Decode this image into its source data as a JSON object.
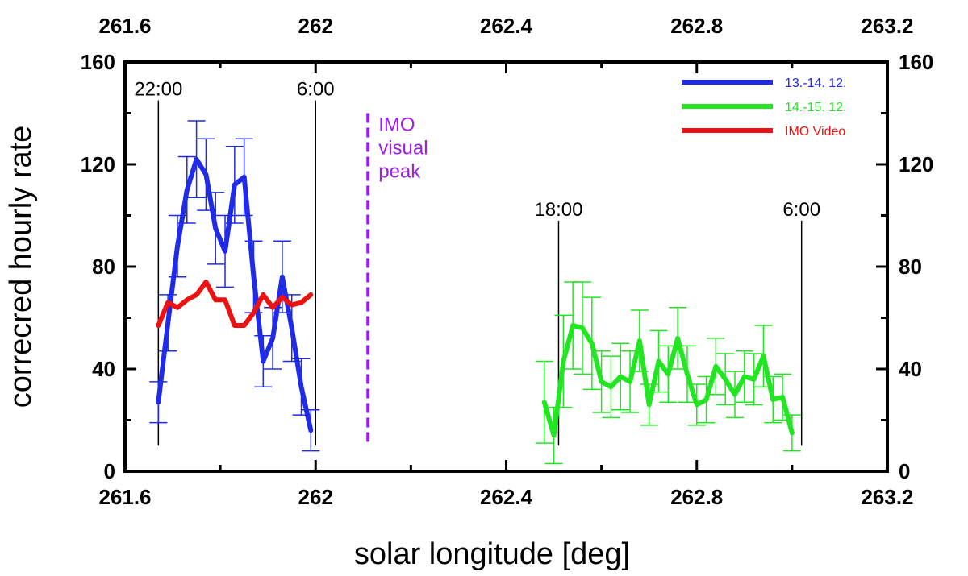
{
  "chart_data": {
    "type": "line",
    "xlabel": "solar longitude [deg]",
    "ylabel": "correcred hourly rate",
    "xlim": [
      261.6,
      263.2
    ],
    "ylim": [
      0,
      160
    ],
    "x_ticks": [
      "261.6",
      "262",
      "262.4",
      "262.8",
      "263.2"
    ],
    "x_tick_values": [
      261.6,
      262.0,
      262.4,
      262.8,
      263.2
    ],
    "y_ticks": [
      "0",
      "40",
      "80",
      "120",
      "160"
    ],
    "y_tick_values": [
      0,
      40,
      80,
      120,
      160
    ],
    "grid": false,
    "legend_position": "top-right",
    "series": [
      {
        "name": "13.-14. 12.",
        "color": "#1f2be8",
        "x": [
          261.67,
          261.69,
          261.71,
          261.73,
          261.75,
          261.77,
          261.79,
          261.81,
          261.83,
          261.85,
          261.87,
          261.89,
          261.91,
          261.93,
          261.95,
          261.97,
          261.99
        ],
        "y": [
          27,
          58,
          88,
          110,
          122,
          116,
          95,
          86,
          112,
          115,
          76,
          43,
          52,
          76,
          56,
          33,
          16
        ],
        "err": [
          8,
          11,
          12,
          13,
          15,
          14,
          14,
          14,
          15,
          15,
          14,
          10,
          12,
          14,
          13,
          11,
          8
        ]
      },
      {
        "name": "14.-15. 12.",
        "color": "#22e622",
        "x": [
          262.48,
          262.5,
          262.52,
          262.54,
          262.56,
          262.58,
          262.6,
          262.62,
          262.64,
          262.66,
          262.68,
          262.7,
          262.72,
          262.74,
          262.76,
          262.78,
          262.8,
          262.82,
          262.84,
          262.86,
          262.88,
          262.9,
          262.92,
          262.94,
          262.96,
          262.98,
          263.0
        ],
        "y": [
          27,
          14,
          43,
          57,
          56,
          50,
          35,
          33,
          37,
          35,
          51,
          26,
          43,
          38,
          52,
          38,
          26,
          28,
          41,
          36,
          30,
          37,
          36,
          45,
          28,
          29,
          15
        ],
        "err": [
          16,
          11,
          18,
          17,
          18,
          18,
          12,
          12,
          13,
          12,
          12,
          8,
          12,
          11,
          12,
          11,
          8,
          9,
          11,
          10,
          9,
          10,
          10,
          12,
          9,
          9,
          7
        ]
      },
      {
        "name": "IMO Video",
        "color": "#ee1111",
        "x": [
          261.67,
          261.69,
          261.71,
          261.73,
          261.75,
          261.77,
          261.79,
          261.81,
          261.83,
          261.85,
          261.87,
          261.89,
          261.91,
          261.93,
          261.95,
          261.97,
          261.99
        ],
        "y": [
          57,
          66,
          64,
          67,
          69,
          74,
          67,
          67,
          57,
          57,
          62,
          69,
          64,
          68,
          65,
          66,
          69
        ]
      }
    ],
    "vertical_markers": [
      {
        "label": "22:00",
        "x": 261.67,
        "y_top": 145,
        "y_bottom": 10,
        "color": "#000000"
      },
      {
        "label": "6:00",
        "x": 262.0,
        "y_top": 145,
        "y_bottom": 10,
        "color": "#000000"
      },
      {
        "label": "18:00",
        "x": 262.51,
        "y_top": 98,
        "y_bottom": 10,
        "color": "#000000"
      },
      {
        "label": "6:00",
        "x": 263.02,
        "y_top": 98,
        "y_bottom": 10,
        "color": "#000000"
      }
    ],
    "peak_marker": {
      "lines": [
        "IMO",
        "visual",
        "peak"
      ],
      "x": 262.11,
      "y_top": 140,
      "y_bottom": 10,
      "color": "#9b1fe8"
    }
  }
}
